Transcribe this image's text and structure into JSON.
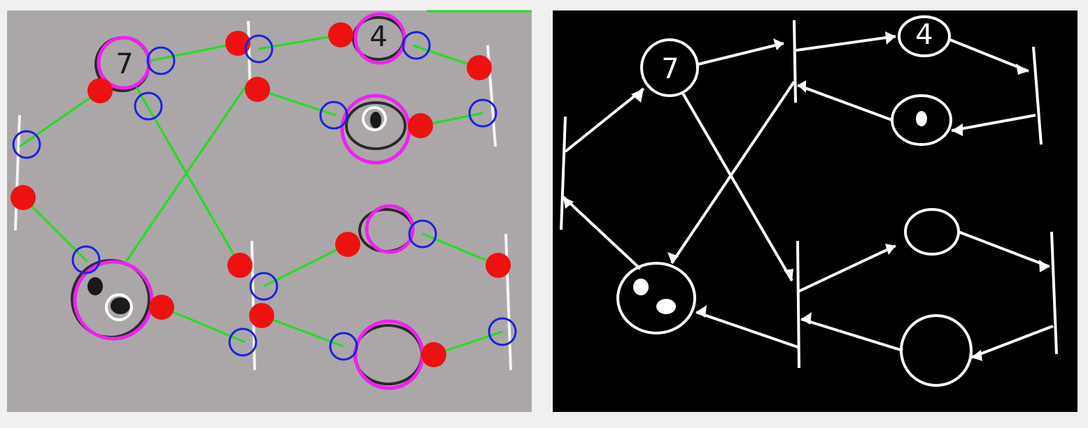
{
  "left_image": {
    "node_labels": [
      "7",
      "4"
    ]
  },
  "right_image": {
    "node_labels": [
      "7",
      "4"
    ]
  }
}
